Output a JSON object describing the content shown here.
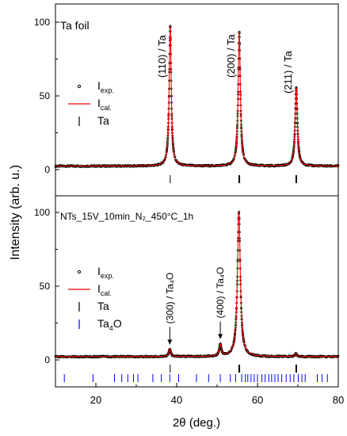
{
  "chart_data": {
    "type": "line",
    "xlabel": "2θ (deg.)",
    "ylabel": "Intensity (arb. u.)",
    "xlim": [
      10,
      80
    ],
    "x_ticks": [
      "20",
      "40",
      "60",
      "80"
    ],
    "colors": {
      "experimental": "#000000",
      "calculated": "#ff0000",
      "ta_marks": "#000000",
      "ta4o_marks": "#0000ff"
    },
    "panels": [
      {
        "id": "ta_foil",
        "title": "Ta foil",
        "ylim": [
          0,
          100
        ],
        "y_ticks": [
          "0",
          "50",
          "100"
        ],
        "legend": [
          {
            "symbol": "circle",
            "label": "I",
            "sub": "exp."
          },
          {
            "symbol": "line",
            "label": "I",
            "sub": "cal."
          },
          {
            "symbol": "tick",
            "label": "Ta",
            "sub": ""
          }
        ],
        "annotations": [
          {
            "text": "(110) / Ta",
            "x": 38.4,
            "arrow": false
          },
          {
            "text": "(200) / Ta",
            "x": 55.5,
            "arrow": false
          },
          {
            "text": "(211) / Ta",
            "x": 69.6,
            "arrow": false
          }
        ],
        "background": 2.4,
        "peaks": [
          {
            "x": 38.4,
            "h": 95,
            "w": 0.3
          },
          {
            "x": 55.5,
            "h": 91,
            "w": 0.32
          },
          {
            "x": 69.6,
            "h": 53,
            "w": 0.33
          }
        ],
        "reflection_rows": [
          {
            "phase": "Ta",
            "color": "#000000",
            "positions": [
              38.4,
              55.4,
              55.6,
              69.5,
              69.7
            ]
          }
        ]
      },
      {
        "id": "nts",
        "title": "NTs_15V_10min_N₂_450°C_1h",
        "ylim": [
          0,
          100
        ],
        "y_ticks": [
          "0",
          "50",
          "100"
        ],
        "legend": [
          {
            "symbol": "circle",
            "label": "I",
            "sub": "exp."
          },
          {
            "symbol": "line",
            "label": "I",
            "sub": "cal."
          },
          {
            "symbol": "tick",
            "label": "Ta",
            "sub": ""
          },
          {
            "symbol": "bluetick",
            "label": "Ta",
            "sub": "4",
            "suffix": "O"
          }
        ],
        "annotations": [
          {
            "text": "(300) / Ta₄O",
            "x": 38.3,
            "arrow": true
          },
          {
            "text": "(400) / Ta₄O",
            "x": 50.8,
            "arrow": true
          }
        ],
        "background": 2.2,
        "peaks": [
          {
            "x": 38.3,
            "h": 5,
            "w": 0.3
          },
          {
            "x": 50.8,
            "h": 8,
            "w": 0.3
          },
          {
            "x": 55.4,
            "h": 98,
            "w": 0.42
          },
          {
            "x": 69.5,
            "h": 2,
            "w": 0.3
          }
        ],
        "reflection_rows": [
          {
            "phase": "Ta",
            "color": "#000000",
            "positions": [
              38.4,
              55.4,
              55.6,
              69.5,
              69.7
            ]
          },
          {
            "phase": "Ta4O",
            "color": "#0000ff",
            "positions": [
              12.2,
              19.3,
              24.6,
              26.4,
              27.9,
              29.3,
              30.4,
              34.1,
              36.2,
              38.3,
              40.5,
              44.9,
              47.9,
              50.8,
              53.3,
              54.6,
              56.1,
              57.0,
              57.6,
              58.4,
              59.2,
              60.0,
              61.1,
              61.9,
              62.8,
              63.5,
              64.3,
              65.1,
              66.0,
              67.1,
              68.1,
              69.0,
              70.1,
              71.0,
              71.8,
              74.8,
              76.0,
              77.3
            ]
          }
        ]
      }
    ]
  }
}
